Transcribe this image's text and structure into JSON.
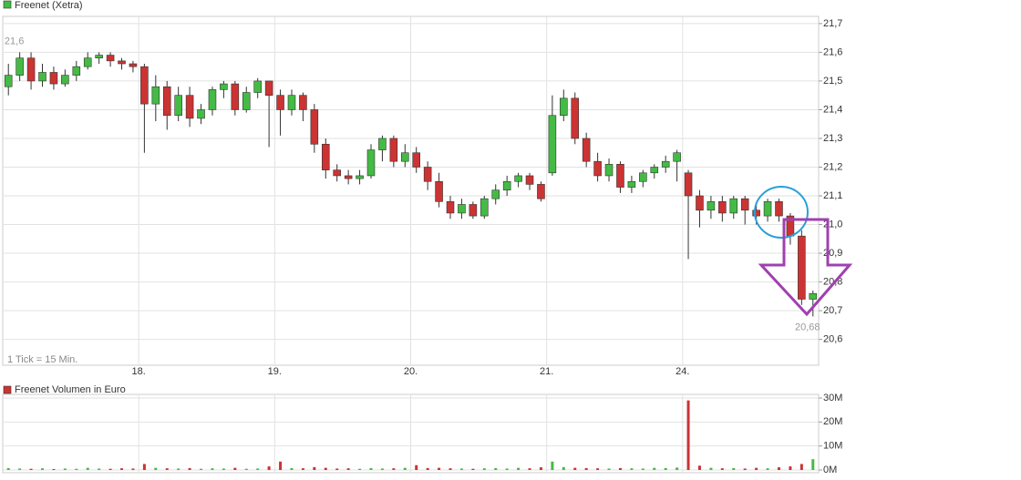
{
  "chart_data": [
    {
      "type": "candlestick",
      "note": "1 Tick = 15 Min.",
      "high_label": "21,6",
      "low_label": "20,68",
      "categories": [
        null,
        null,
        null,
        null,
        null,
        null,
        null,
        null,
        null,
        null,
        null,
        null,
        "18.",
        null,
        null,
        null,
        null,
        null,
        null,
        null,
        null,
        null,
        null,
        null,
        "19.",
        null,
        null,
        null,
        null,
        null,
        null,
        null,
        null,
        null,
        null,
        null,
        "20.",
        null,
        null,
        null,
        null,
        null,
        null,
        null,
        null,
        null,
        null,
        null,
        "21.",
        null,
        null,
        null,
        null,
        null,
        null,
        null,
        null,
        null,
        null,
        null,
        "24.",
        null,
        null,
        null,
        null,
        null,
        null,
        null,
        null,
        null,
        null,
        null
      ],
      "series": [
        {
          "name": "Freenet (Xetra)",
          "up_color": "#44bb44",
          "down_color": "#cc3333",
          "open": [
            21.48,
            21.52,
            21.58,
            21.5,
            21.53,
            21.49,
            21.52,
            21.55,
            21.58,
            21.59,
            21.57,
            21.56,
            21.55,
            21.42,
            21.48,
            21.38,
            21.45,
            21.37,
            21.4,
            21.47,
            21.49,
            21.4,
            21.46,
            21.5,
            21.45,
            21.4,
            21.45,
            21.4,
            21.28,
            21.19,
            21.17,
            21.16,
            21.17,
            21.26,
            21.3,
            21.22,
            21.25,
            21.2,
            21.15,
            21.08,
            21.04,
            21.07,
            21.03,
            21.09,
            21.12,
            21.15,
            21.17,
            21.14,
            21.18,
            21.38,
            21.44,
            21.3,
            21.22,
            21.17,
            21.21,
            21.13,
            21.15,
            21.18,
            21.2,
            21.22,
            21.18,
            21.1,
            21.05,
            21.08,
            21.04,
            21.09,
            21.05,
            21.03,
            21.08,
            21.03,
            20.96,
            20.74
          ],
          "high": [
            21.56,
            21.6,
            21.6,
            21.56,
            21.55,
            21.54,
            21.57,
            21.6,
            21.6,
            21.6,
            21.58,
            21.57,
            21.56,
            21.52,
            21.5,
            21.48,
            21.48,
            21.42,
            21.48,
            21.5,
            21.5,
            21.48,
            21.51,
            21.5,
            21.47,
            21.47,
            21.46,
            21.42,
            21.3,
            21.21,
            21.19,
            21.19,
            21.28,
            21.31,
            21.31,
            21.28,
            21.27,
            21.22,
            21.18,
            21.1,
            21.09,
            21.08,
            21.1,
            21.14,
            21.17,
            21.18,
            21.18,
            21.15,
            21.45,
            21.47,
            21.46,
            21.32,
            21.25,
            21.23,
            21.22,
            21.17,
            21.19,
            21.21,
            21.24,
            21.26,
            21.19,
            21.12,
            21.1,
            21.1,
            21.1,
            21.1,
            21.07,
            21.09,
            21.09,
            21.04,
            20.98,
            20.77
          ],
          "low": [
            21.45,
            21.5,
            21.47,
            21.48,
            21.47,
            21.48,
            21.5,
            21.54,
            21.56,
            21.55,
            21.54,
            21.53,
            21.25,
            21.36,
            21.33,
            21.36,
            21.34,
            21.35,
            21.38,
            21.44,
            21.38,
            21.39,
            21.44,
            21.27,
            21.31,
            21.38,
            21.36,
            21.25,
            21.16,
            21.15,
            21.14,
            21.14,
            21.16,
            21.22,
            21.2,
            21.2,
            21.18,
            21.12,
            21.06,
            21.02,
            21.02,
            21.02,
            21.02,
            21.07,
            21.1,
            21.13,
            21.12,
            21.08,
            21.17,
            21.36,
            21.28,
            21.2,
            21.15,
            21.15,
            21.11,
            21.11,
            21.13,
            21.16,
            21.18,
            21.15,
            20.88,
            20.99,
            21.02,
            21.01,
            21.02,
            21.0,
            21.0,
            21.01,
            21.01,
            20.93,
            20.72,
            20.68
          ],
          "close": [
            21.52,
            21.58,
            21.5,
            21.53,
            21.49,
            21.52,
            21.55,
            21.58,
            21.59,
            21.57,
            21.56,
            21.55,
            21.42,
            21.48,
            21.38,
            21.45,
            21.37,
            21.4,
            21.47,
            21.49,
            21.4,
            21.46,
            21.5,
            21.45,
            21.4,
            21.45,
            21.4,
            21.28,
            21.19,
            21.17,
            21.16,
            21.17,
            21.26,
            21.3,
            21.22,
            21.25,
            21.2,
            21.15,
            21.08,
            21.04,
            21.07,
            21.03,
            21.09,
            21.12,
            21.15,
            21.17,
            21.14,
            21.09,
            21.38,
            21.44,
            21.3,
            21.22,
            21.17,
            21.21,
            21.13,
            21.15,
            21.18,
            21.2,
            21.22,
            21.25,
            21.1,
            21.05,
            21.08,
            21.04,
            21.09,
            21.05,
            21.03,
            21.08,
            21.03,
            20.96,
            20.74,
            20.76
          ]
        }
      ],
      "ylim": [
        20.51,
        21.725
      ],
      "yticks": [
        {
          "value": 20.6,
          "label": "20,6"
        },
        {
          "value": 20.7,
          "label": "20,7"
        },
        {
          "value": 20.8,
          "label": "20,8"
        },
        {
          "value": 20.9,
          "label": "20,9"
        },
        {
          "value": 21.0,
          "label": "21,0"
        },
        {
          "value": 21.1,
          "label": "21,1"
        },
        {
          "value": 21.2,
          "label": "21,2"
        },
        {
          "value": 21.3,
          "label": "21,3"
        },
        {
          "value": 21.4,
          "label": "21,4"
        },
        {
          "value": 21.5,
          "label": "21,5"
        },
        {
          "value": 21.6,
          "label": "21,6"
        },
        {
          "value": 21.7,
          "label": "21,7"
        }
      ],
      "grid": true
    },
    {
      "type": "bar",
      "name": "Freenet Volumen in Euro",
      "values": [
        800000,
        600000,
        500000,
        700000,
        400000,
        600000,
        500000,
        900000,
        600000,
        500000,
        700000,
        600000,
        2500000,
        900000,
        700000,
        600000,
        800000,
        500000,
        700000,
        600000,
        900000,
        500000,
        600000,
        1500000,
        3500000,
        800000,
        700000,
        1200000,
        900000,
        600000,
        700000,
        500000,
        800000,
        600000,
        700000,
        900000,
        2000000,
        800000,
        900000,
        700000,
        600000,
        500000,
        700000,
        800000,
        600000,
        900000,
        700000,
        1100000,
        3500000,
        1200000,
        900000,
        800000,
        700000,
        600000,
        800000,
        700000,
        600000,
        900000,
        800000,
        1000000,
        29000000,
        1800000,
        900000,
        700000,
        800000,
        600000,
        900000,
        700000,
        1100000,
        1500000,
        2500000,
        4500000
      ],
      "ylim": [
        0,
        30000000
      ],
      "yticks": [
        {
          "value": 0,
          "label": "0M"
        },
        {
          "value": 10000000,
          "label": "10M"
        },
        {
          "value": 20000000,
          "label": "20M"
        },
        {
          "value": 30000000,
          "label": "30M"
        }
      ],
      "grid": true
    }
  ]
}
